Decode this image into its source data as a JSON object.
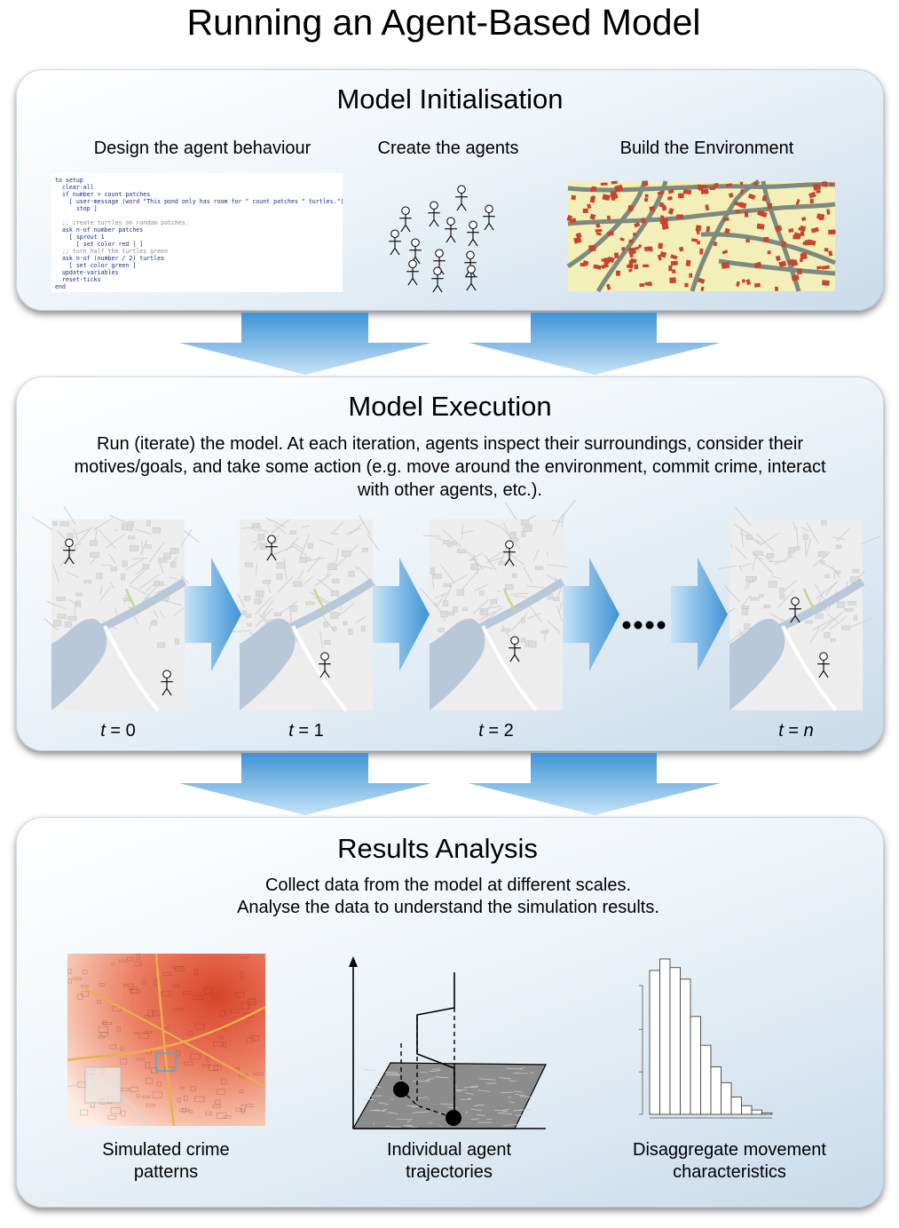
{
  "title": "Running an Agent-Based Model",
  "initialisation": {
    "title": "Model Initialisation",
    "steps": [
      "Design the agent behaviour",
      "Create the agents",
      "Build the Environment"
    ],
    "code_lines": [
      "to setup",
      "  clear-all",
      "  if number > count patches",
      "    [ user-message (word \"This pond only has room for \" count patches \" turtles.\")",
      "      stop ]",
      "",
      "  ;; create turtles on random patches.",
      "  ask n-of number patches",
      "    [ sprout 1",
      "      [ set color red ] ]",
      "  ;; turn half the turtles green",
      "  ask n-of (number / 2) turtles",
      "    [ set color green ]",
      "  update-variables",
      "  reset-ticks",
      "end"
    ]
  },
  "execution": {
    "title": "Model Execution",
    "description": "Run (iterate) the model. At each iteration, agents inspect their surroundings, consider their motives/goals, and take some action (e.g. move around the environment, commit crime, interact with other agents, etc.).",
    "time_labels": [
      {
        "var": "t",
        "value": "0"
      },
      {
        "var": "t",
        "value": "1"
      },
      {
        "var": "t",
        "value": "2"
      },
      {
        "var": "t",
        "value": "n"
      }
    ]
  },
  "results": {
    "title": "Results Analysis",
    "description_line1": "Collect data from the model at different scales.",
    "description_line2": "Analyse the data to understand the simulation results.",
    "captions": [
      {
        "line1": "Simulated crime",
        "line2": "patterns"
      },
      {
        "line1": "Individual agent",
        "line2": "trajectories"
      },
      {
        "line1": "Disaggregate movement",
        "line2": "characteristics"
      }
    ],
    "histogram_values": [
      100,
      108,
      102,
      94,
      68,
      48,
      33,
      22,
      12,
      6,
      3,
      1
    ]
  },
  "colors": {
    "arrow": "#6fb3e3",
    "building": "#c8442f",
    "land": "#f3efb8",
    "road": "#7d8a80",
    "heat": "#e8604a"
  }
}
